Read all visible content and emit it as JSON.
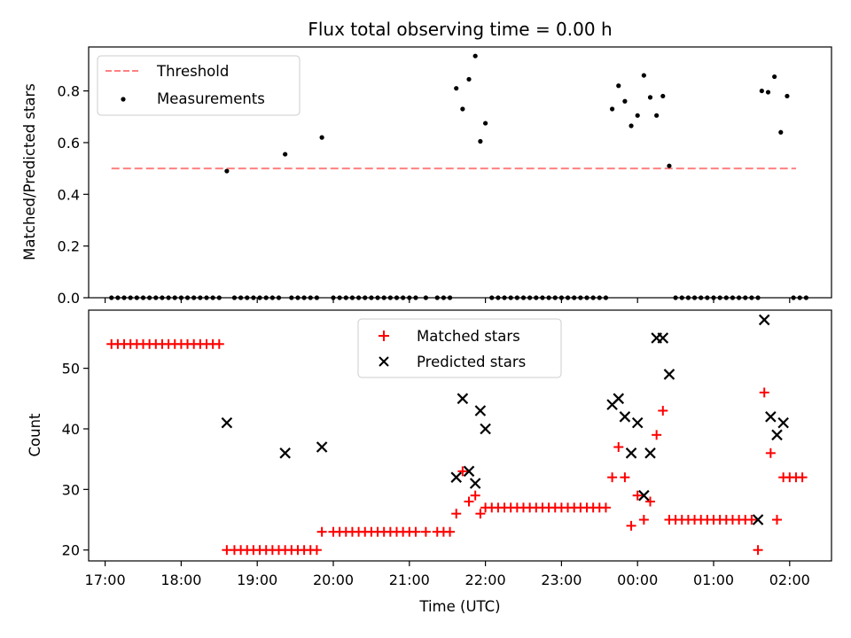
{
  "chart_data": [
    {
      "type": "scatter",
      "title": "Flux total observing time = 0.00 h",
      "xlabel": "",
      "ylabel": "Matched/Predicted stars",
      "x_unit": "time (UTC)",
      "xlim": [
        "16:47",
        "02:33"
      ],
      "ylim": [
        0,
        0.97
      ],
      "yticks": [
        0.0,
        0.2,
        0.4,
        0.6,
        0.8
      ],
      "ytick_labels": [
        "0.0",
        "0.2",
        "0.4",
        "0.6",
        "0.8"
      ],
      "grid": false,
      "legend_position": "top-left",
      "threshold": {
        "name": "Threshold",
        "value": 0.5,
        "x_range": [
          "17:05",
          "02:05"
        ],
        "color": "#ff8080",
        "style": "dashed"
      },
      "series": [
        {
          "name": "Measurements",
          "marker": "dot",
          "color": "#000000",
          "points": [
            [
              "17:05",
              0
            ],
            [
              "17:10",
              0
            ],
            [
              "17:15",
              0
            ],
            [
              "17:20",
              0
            ],
            [
              "17:25",
              0
            ],
            [
              "17:30",
              0
            ],
            [
              "17:35",
              0
            ],
            [
              "17:40",
              0
            ],
            [
              "17:45",
              0
            ],
            [
              "17:50",
              0
            ],
            [
              "17:55",
              0
            ],
            [
              "18:00",
              0
            ],
            [
              "18:05",
              0
            ],
            [
              "18:10",
              0
            ],
            [
              "18:15",
              0
            ],
            [
              "18:20",
              0
            ],
            [
              "18:25",
              0
            ],
            [
              "18:30",
              0
            ],
            [
              "18:36",
              0.49
            ],
            [
              "18:42",
              0
            ],
            [
              "18:47",
              0
            ],
            [
              "18:52",
              0
            ],
            [
              "18:57",
              0
            ],
            [
              "19:02",
              0
            ],
            [
              "19:07",
              0
            ],
            [
              "19:12",
              0
            ],
            [
              "19:17",
              0
            ],
            [
              "19:22",
              0.555
            ],
            [
              "19:27",
              0
            ],
            [
              "19:32",
              0
            ],
            [
              "19:37",
              0
            ],
            [
              "19:42",
              0
            ],
            [
              "19:47",
              0
            ],
            [
              "19:51",
              0.62
            ],
            [
              "20:00",
              0
            ],
            [
              "20:05",
              0
            ],
            [
              "20:10",
              0
            ],
            [
              "20:15",
              0
            ],
            [
              "20:20",
              0
            ],
            [
              "20:25",
              0
            ],
            [
              "20:30",
              0
            ],
            [
              "20:35",
              0
            ],
            [
              "20:40",
              0
            ],
            [
              "20:45",
              0
            ],
            [
              "20:50",
              0
            ],
            [
              "20:55",
              0
            ],
            [
              "21:00",
              0
            ],
            [
              "21:05",
              0
            ],
            [
              "21:13",
              0
            ],
            [
              "21:22",
              0
            ],
            [
              "21:27",
              0
            ],
            [
              "21:32",
              0
            ],
            [
              "21:37",
              0.81
            ],
            [
              "21:42",
              0.73
            ],
            [
              "21:47",
              0.845
            ],
            [
              "21:52",
              0.935
            ],
            [
              "21:56",
              0.605
            ],
            [
              "22:00",
              0.675
            ],
            [
              "22:05",
              0
            ],
            [
              "22:10",
              0
            ],
            [
              "22:15",
              0
            ],
            [
              "22:20",
              0
            ],
            [
              "22:25",
              0
            ],
            [
              "22:30",
              0
            ],
            [
              "22:35",
              0
            ],
            [
              "22:40",
              0
            ],
            [
              "22:45",
              0
            ],
            [
              "22:50",
              0
            ],
            [
              "22:55",
              0
            ],
            [
              "23:00",
              0
            ],
            [
              "23:05",
              0
            ],
            [
              "23:10",
              0
            ],
            [
              "23:15",
              0
            ],
            [
              "23:20",
              0
            ],
            [
              "23:25",
              0
            ],
            [
              "23:30",
              0
            ],
            [
              "23:35",
              0
            ],
            [
              "23:40",
              0.73
            ],
            [
              "23:45",
              0.82
            ],
            [
              "23:50",
              0.76
            ],
            [
              "23:55",
              0.665
            ],
            [
              "00:00",
              0.705
            ],
            [
              "00:05",
              0.86
            ],
            [
              "00:10",
              0.775
            ],
            [
              "00:15",
              0.705
            ],
            [
              "00:20",
              0.78
            ],
            [
              "00:25",
              0.51
            ],
            [
              "00:30",
              0
            ],
            [
              "00:35",
              0
            ],
            [
              "00:40",
              0
            ],
            [
              "00:45",
              0
            ],
            [
              "00:50",
              0
            ],
            [
              "00:55",
              0
            ],
            [
              "01:00",
              0
            ],
            [
              "01:05",
              0
            ],
            [
              "01:10",
              0
            ],
            [
              "01:15",
              0
            ],
            [
              "01:20",
              0
            ],
            [
              "01:25",
              0
            ],
            [
              "01:30",
              0
            ],
            [
              "01:35",
              0
            ],
            [
              "01:38",
              0.8
            ],
            [
              "01:43",
              0.795
            ],
            [
              "01:48",
              0.855
            ],
            [
              "01:53",
              0.64
            ],
            [
              "01:58",
              0.78
            ],
            [
              "02:03",
              0
            ],
            [
              "02:08",
              0
            ],
            [
              "02:13",
              0
            ]
          ]
        }
      ]
    },
    {
      "type": "scatter",
      "title": "",
      "xlabel": "Time (UTC)",
      "ylabel": "Count",
      "xlim": [
        "16:47",
        "02:33"
      ],
      "ylim": [
        18.2,
        59.6
      ],
      "xticks": [
        "17:00",
        "18:00",
        "19:00",
        "20:00",
        "21:00",
        "22:00",
        "23:00",
        "00:00",
        "01:00",
        "02:00"
      ],
      "yticks": [
        20,
        30,
        40,
        50
      ],
      "ytick_labels": [
        "20",
        "30",
        "40",
        "50"
      ],
      "grid": false,
      "legend_position": "top-center",
      "series": [
        {
          "name": "Matched stars",
          "marker": "plus",
          "color": "#ff0000",
          "points": [
            [
              "17:05",
              54
            ],
            [
              "17:10",
              54
            ],
            [
              "17:15",
              54
            ],
            [
              "17:20",
              54
            ],
            [
              "17:25",
              54
            ],
            [
              "17:30",
              54
            ],
            [
              "17:35",
              54
            ],
            [
              "17:40",
              54
            ],
            [
              "17:45",
              54
            ],
            [
              "17:50",
              54
            ],
            [
              "17:55",
              54
            ],
            [
              "18:00",
              54
            ],
            [
              "18:05",
              54
            ],
            [
              "18:10",
              54
            ],
            [
              "18:15",
              54
            ],
            [
              "18:20",
              54
            ],
            [
              "18:25",
              54
            ],
            [
              "18:30",
              54
            ],
            [
              "18:36",
              20
            ],
            [
              "18:42",
              20
            ],
            [
              "18:47",
              20
            ],
            [
              "18:52",
              20
            ],
            [
              "18:57",
              20
            ],
            [
              "19:02",
              20
            ],
            [
              "19:07",
              20
            ],
            [
              "19:12",
              20
            ],
            [
              "19:17",
              20
            ],
            [
              "19:22",
              20
            ],
            [
              "19:27",
              20
            ],
            [
              "19:32",
              20
            ],
            [
              "19:37",
              20
            ],
            [
              "19:42",
              20
            ],
            [
              "19:47",
              20
            ],
            [
              "19:51",
              23
            ],
            [
              "20:00",
              23
            ],
            [
              "20:05",
              23
            ],
            [
              "20:10",
              23
            ],
            [
              "20:15",
              23
            ],
            [
              "20:20",
              23
            ],
            [
              "20:25",
              23
            ],
            [
              "20:30",
              23
            ],
            [
              "20:35",
              23
            ],
            [
              "20:40",
              23
            ],
            [
              "20:45",
              23
            ],
            [
              "20:50",
              23
            ],
            [
              "20:55",
              23
            ],
            [
              "21:00",
              23
            ],
            [
              "21:05",
              23
            ],
            [
              "21:13",
              23
            ],
            [
              "21:22",
              23
            ],
            [
              "21:27",
              23
            ],
            [
              "21:32",
              23
            ],
            [
              "21:37",
              26
            ],
            [
              "21:42",
              33
            ],
            [
              "21:47",
              28
            ],
            [
              "21:52",
              29
            ],
            [
              "21:56",
              26
            ],
            [
              "22:00",
              27
            ],
            [
              "22:05",
              27
            ],
            [
              "22:10",
              27
            ],
            [
              "22:15",
              27
            ],
            [
              "22:20",
              27
            ],
            [
              "22:25",
              27
            ],
            [
              "22:30",
              27
            ],
            [
              "22:35",
              27
            ],
            [
              "22:40",
              27
            ],
            [
              "22:45",
              27
            ],
            [
              "22:50",
              27
            ],
            [
              "22:55",
              27
            ],
            [
              "23:00",
              27
            ],
            [
              "23:05",
              27
            ],
            [
              "23:10",
              27
            ],
            [
              "23:15",
              27
            ],
            [
              "23:20",
              27
            ],
            [
              "23:25",
              27
            ],
            [
              "23:30",
              27
            ],
            [
              "23:35",
              27
            ],
            [
              "23:40",
              32
            ],
            [
              "23:45",
              37
            ],
            [
              "23:50",
              32
            ],
            [
              "23:55",
              24
            ],
            [
              "00:00",
              29
            ],
            [
              "00:05",
              25
            ],
            [
              "00:10",
              28
            ],
            [
              "00:15",
              39
            ],
            [
              "00:20",
              43
            ],
            [
              "00:25",
              25
            ],
            [
              "00:30",
              25
            ],
            [
              "00:35",
              25
            ],
            [
              "00:40",
              25
            ],
            [
              "00:45",
              25
            ],
            [
              "00:50",
              25
            ],
            [
              "00:55",
              25
            ],
            [
              "01:00",
              25
            ],
            [
              "01:05",
              25
            ],
            [
              "01:10",
              25
            ],
            [
              "01:15",
              25
            ],
            [
              "01:20",
              25
            ],
            [
              "01:25",
              25
            ],
            [
              "01:30",
              25
            ],
            [
              "01:35",
              20
            ],
            [
              "01:40",
              46
            ],
            [
              "01:45",
              36
            ],
            [
              "01:50",
              25
            ],
            [
              "01:55",
              32
            ],
            [
              "02:00",
              32
            ],
            [
              "02:05",
              32
            ],
            [
              "02:10",
              32
            ]
          ]
        },
        {
          "name": "Predicted stars",
          "marker": "x",
          "color": "#000000",
          "points": [
            [
              "18:36",
              41
            ],
            [
              "19:22",
              36
            ],
            [
              "19:51",
              37
            ],
            [
              "21:37",
              32
            ],
            [
              "21:42",
              45
            ],
            [
              "21:47",
              33
            ],
            [
              "21:52",
              31
            ],
            [
              "21:56",
              43
            ],
            [
              "22:00",
              40
            ],
            [
              "23:40",
              44
            ],
            [
              "23:45",
              45
            ],
            [
              "23:50",
              42
            ],
            [
              "23:55",
              36
            ],
            [
              "00:00",
              41
            ],
            [
              "00:05",
              29
            ],
            [
              "00:10",
              36
            ],
            [
              "00:15",
              55
            ],
            [
              "00:20",
              55
            ],
            [
              "00:25",
              49
            ],
            [
              "01:35",
              25
            ],
            [
              "01:40",
              58
            ],
            [
              "01:45",
              42
            ],
            [
              "01:50",
              39
            ],
            [
              "01:55",
              41
            ]
          ]
        }
      ]
    }
  ]
}
